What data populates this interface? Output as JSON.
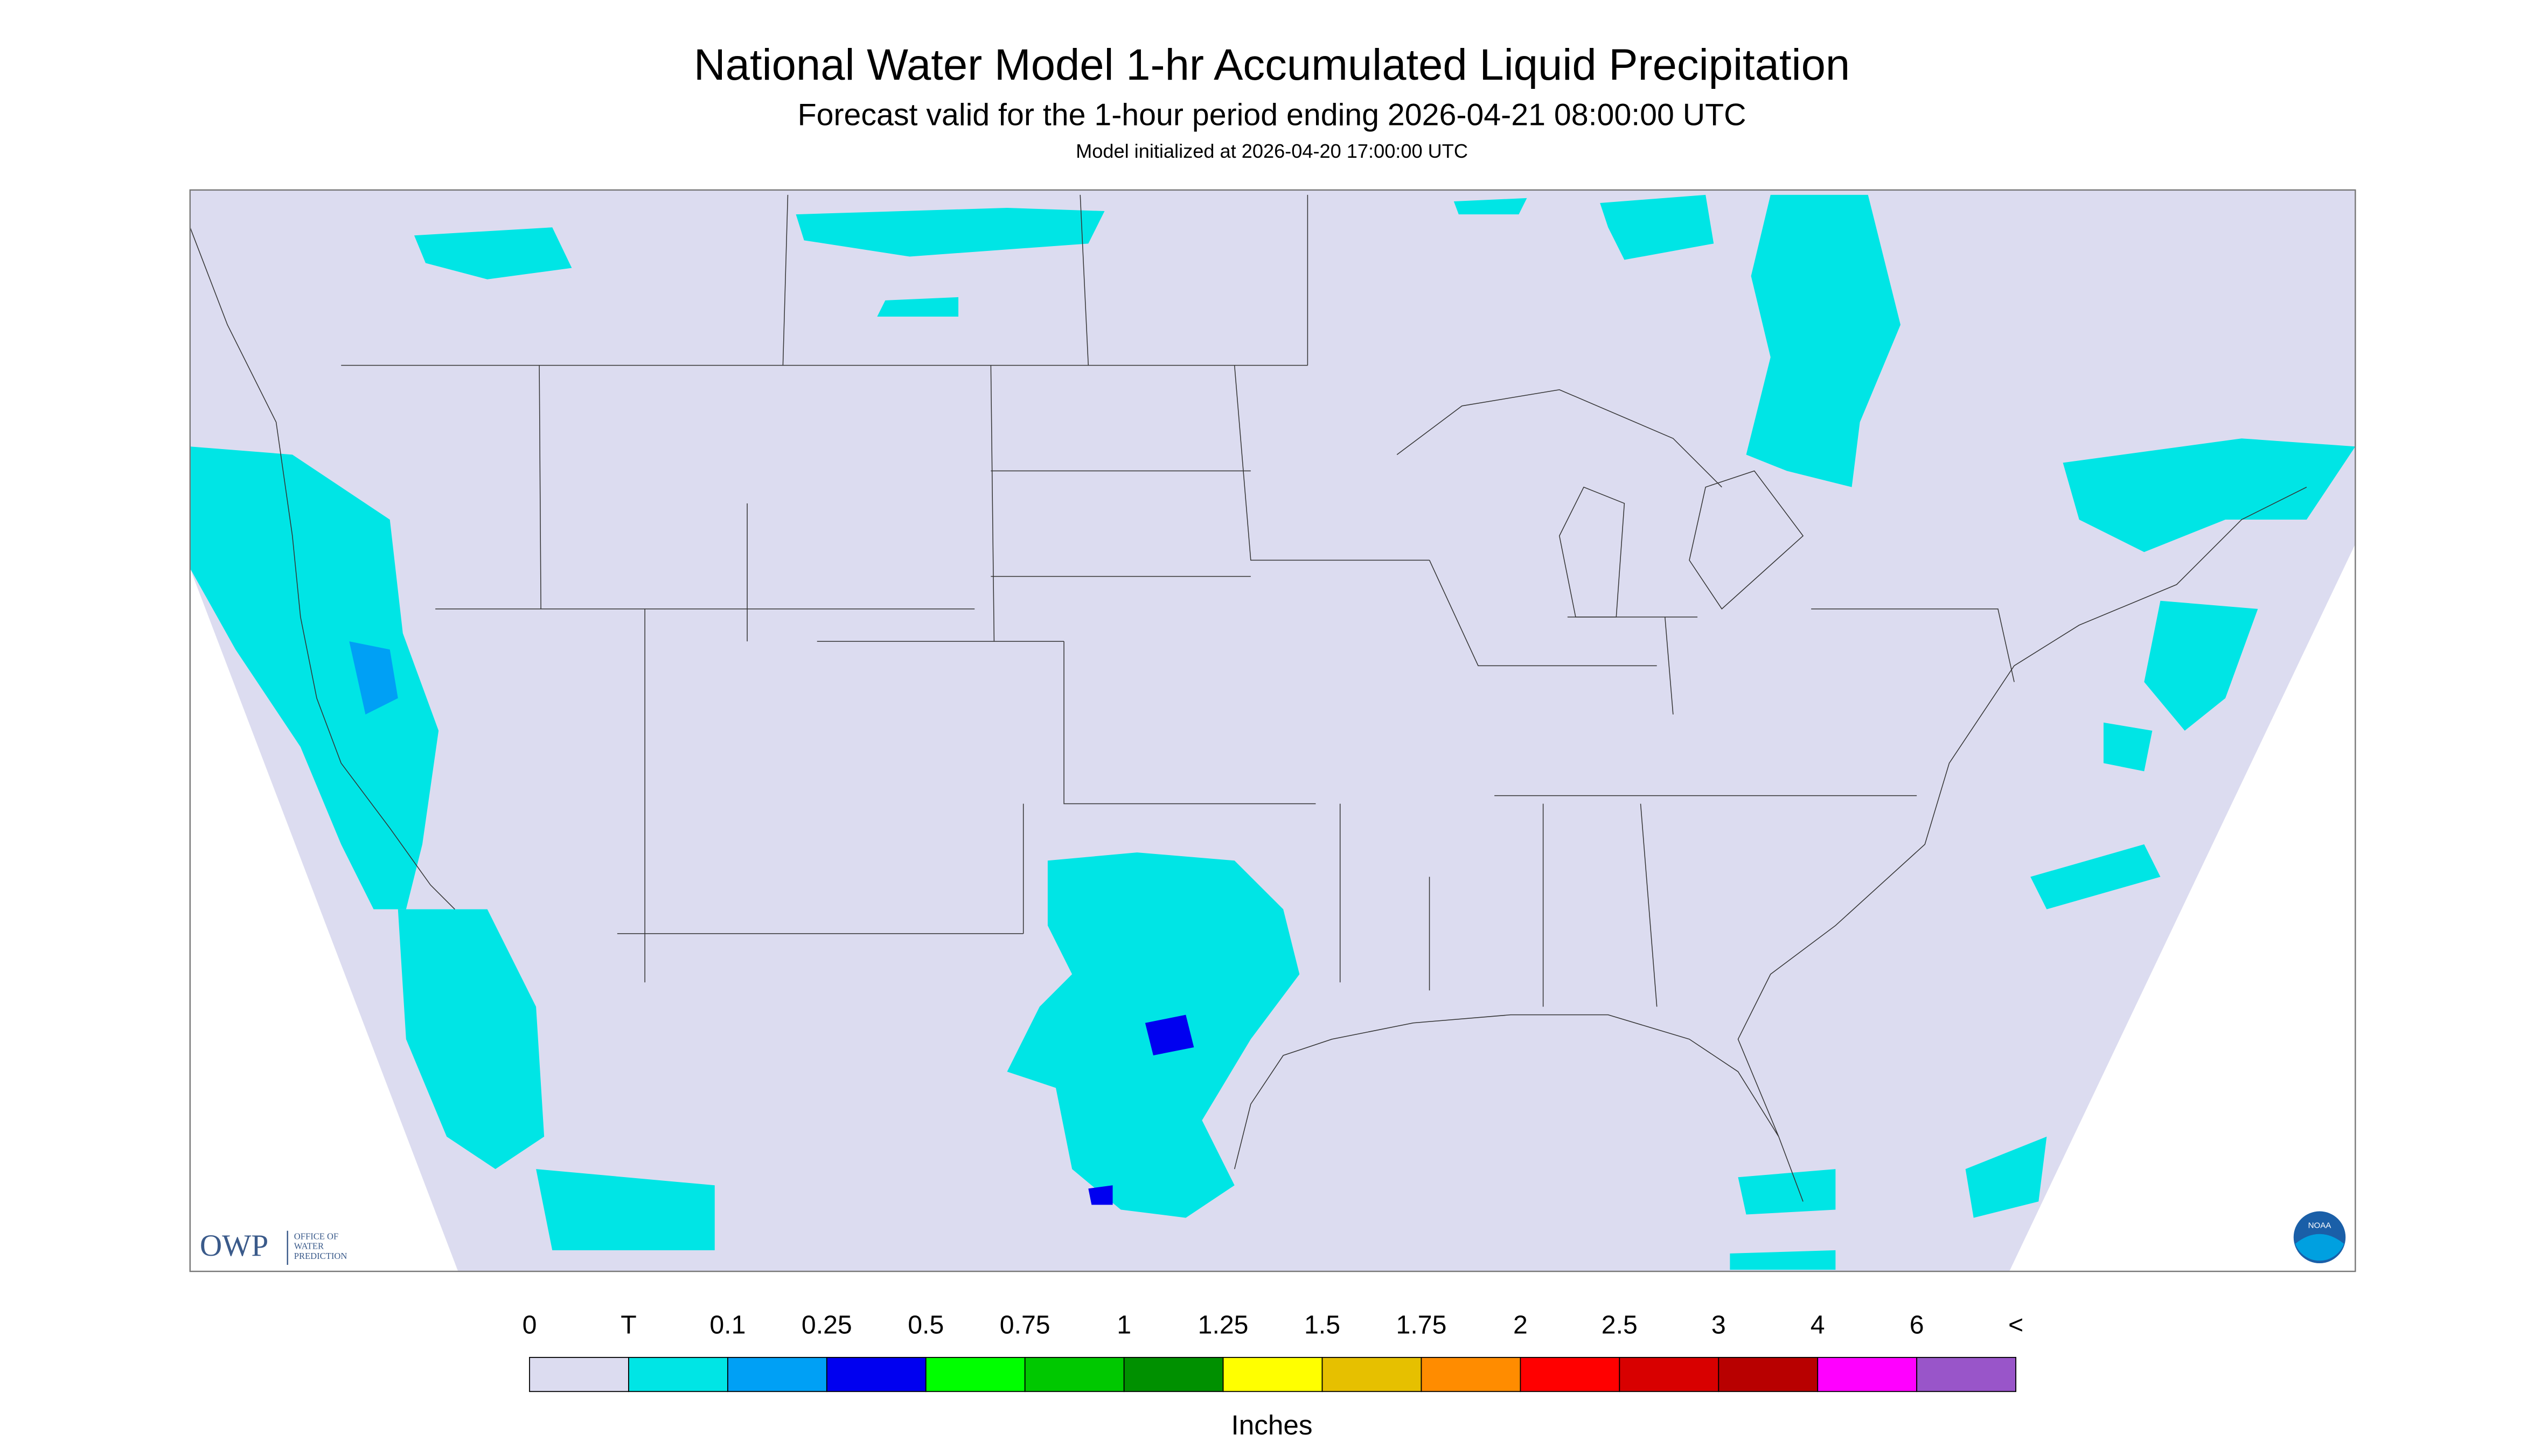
{
  "header": {
    "title": "National Water Model 1-hr Accumulated Liquid Precipitation",
    "subtitle": "Forecast valid for the 1-hour period ending 2026-04-21 08:00:00 UTC",
    "note": "Model initialized at 2026-04-20 17:00:00 UTC"
  },
  "legend": {
    "labels": [
      "0",
      "T",
      "0.1",
      "0.25",
      "0.5",
      "0.75",
      "1",
      "1.25",
      "1.5",
      "1.75",
      "2",
      "2.5",
      "3",
      "4",
      "6",
      "<"
    ],
    "colors": [
      "#dcdcf0",
      "#00e5e5",
      "#00a0f5",
      "#0000f0",
      "#00ff00",
      "#00c800",
      "#009000",
      "#ffff00",
      "#e6c000",
      "#ff8c00",
      "#ff0000",
      "#d80000",
      "#b80000",
      "#ff00ff",
      "#9955c9"
    ],
    "unit": "Inches"
  },
  "logos": {
    "owp": "OWP",
    "owp_lines": [
      "OFFICE OF",
      "WATER",
      "PREDICTION"
    ],
    "noaa": "NOAA"
  }
}
